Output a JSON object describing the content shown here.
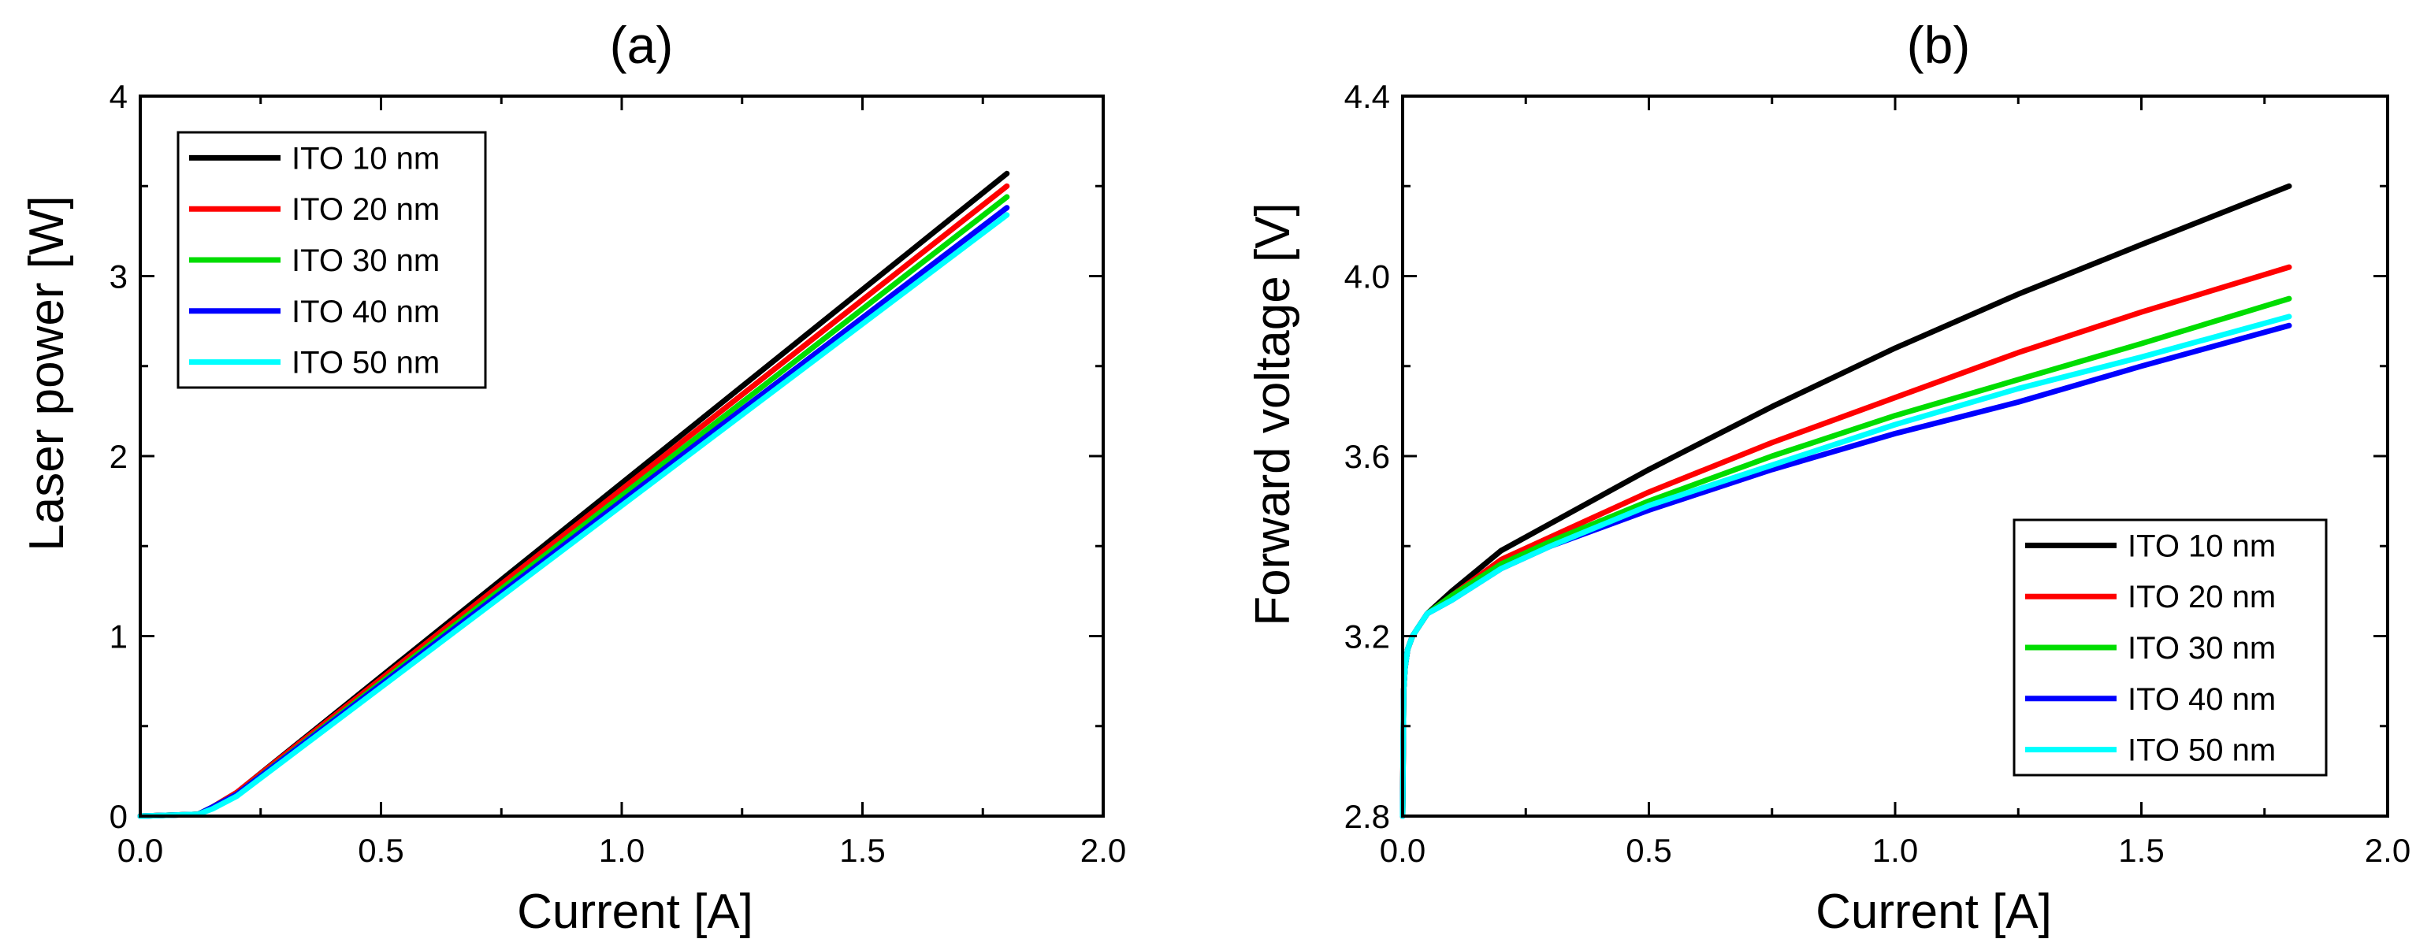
{
  "chart_data": [
    {
      "type": "line",
      "title": "(a)",
      "xlabel": "Current [A]",
      "ylabel": "Laser power [W]",
      "xlim": [
        0.0,
        2.0
      ],
      "ylim": [
        0,
        4
      ],
      "xticks": [
        0.0,
        0.5,
        1.0,
        1.5,
        2.0
      ],
      "xtick_labels": [
        "0.0",
        "0.5",
        "1.0",
        "1.5",
        "2.0"
      ],
      "yticks": [
        0,
        1,
        2,
        3,
        4
      ],
      "ytick_labels": [
        "0",
        "1",
        "2",
        "3",
        "4"
      ],
      "legend_position": "top-left",
      "series": [
        {
          "name": "ITO 10 nm",
          "color": "#000000",
          "x": [
            0,
            0.12,
            0.15,
            0.2,
            1.8
          ],
          "y": [
            0,
            0.01,
            0.05,
            0.13,
            3.57
          ]
        },
        {
          "name": "ITO 20 nm",
          "color": "#ff0000",
          "x": [
            0,
            0.12,
            0.15,
            0.2,
            1.8
          ],
          "y": [
            0,
            0.01,
            0.05,
            0.13,
            3.5
          ]
        },
        {
          "name": "ITO 30 nm",
          "color": "#00dd00",
          "x": [
            0,
            0.12,
            0.15,
            0.2,
            1.8
          ],
          "y": [
            0,
            0.01,
            0.05,
            0.12,
            3.44
          ]
        },
        {
          "name": "ITO 40 nm",
          "color": "#0000ff",
          "x": [
            0,
            0.12,
            0.15,
            0.2,
            1.8
          ],
          "y": [
            0,
            0.01,
            0.05,
            0.12,
            3.38
          ]
        },
        {
          "name": "ITO 50 nm",
          "color": "#00ffff",
          "x": [
            0,
            0.12,
            0.15,
            0.2,
            1.8
          ],
          "y": [
            0,
            0.01,
            0.04,
            0.11,
            3.34
          ]
        }
      ]
    },
    {
      "type": "line",
      "title": "(b)",
      "xlabel": "Current [A]",
      "ylabel": "Forward voltage [V]",
      "xlim": [
        0.0,
        2.0
      ],
      "ylim": [
        2.8,
        4.4
      ],
      "xticks": [
        0.0,
        0.5,
        1.0,
        1.5,
        2.0
      ],
      "xtick_labels": [
        "0.0",
        "0.5",
        "1.0",
        "1.5",
        "2.0"
      ],
      "yticks": [
        2.8,
        3.2,
        3.6,
        4.0,
        4.4
      ],
      "ytick_labels": [
        "2.8",
        "3.2",
        "3.6",
        "4.0",
        "4.4"
      ],
      "legend_position": "bottom-right",
      "series": [
        {
          "name": "ITO 10 nm",
          "color": "#000000",
          "x": [
            0,
            0.002,
            0.005,
            0.01,
            0.02,
            0.05,
            0.1,
            0.2,
            0.3,
            0.5,
            0.75,
            1.0,
            1.25,
            1.5,
            1.8
          ],
          "y": [
            2.8,
            3.08,
            3.13,
            3.17,
            3.2,
            3.25,
            3.3,
            3.39,
            3.45,
            3.57,
            3.71,
            3.84,
            3.96,
            4.07,
            4.2
          ]
        },
        {
          "name": "ITO 20 nm",
          "color": "#ff0000",
          "x": [
            0,
            0.002,
            0.005,
            0.01,
            0.02,
            0.05,
            0.1,
            0.2,
            0.3,
            0.5,
            0.75,
            1.0,
            1.25,
            1.5,
            1.8
          ],
          "y": [
            2.8,
            3.08,
            3.13,
            3.17,
            3.2,
            3.25,
            3.29,
            3.37,
            3.42,
            3.52,
            3.63,
            3.73,
            3.83,
            3.92,
            4.02
          ]
        },
        {
          "name": "ITO 30 nm",
          "color": "#00dd00",
          "x": [
            0,
            0.002,
            0.005,
            0.01,
            0.02,
            0.05,
            0.1,
            0.2,
            0.3,
            0.5,
            0.75,
            1.0,
            1.25,
            1.5,
            1.8
          ],
          "y": [
            2.8,
            3.08,
            3.13,
            3.17,
            3.2,
            3.25,
            3.29,
            3.36,
            3.41,
            3.5,
            3.6,
            3.69,
            3.77,
            3.85,
            3.95
          ]
        },
        {
          "name": "ITO 40 nm",
          "color": "#0000ff",
          "x": [
            0,
            0.002,
            0.005,
            0.01,
            0.02,
            0.05,
            0.1,
            0.2,
            0.3,
            0.5,
            0.75,
            1.0,
            1.25,
            1.5,
            1.8
          ],
          "y": [
            2.8,
            3.08,
            3.13,
            3.17,
            3.2,
            3.25,
            3.28,
            3.35,
            3.4,
            3.48,
            3.57,
            3.65,
            3.72,
            3.8,
            3.89
          ]
        },
        {
          "name": "ITO 50 nm",
          "color": "#00ffff",
          "x": [
            0,
            0.002,
            0.005,
            0.01,
            0.02,
            0.05,
            0.1,
            0.2,
            0.3,
            0.5,
            0.75,
            1.0,
            1.25,
            1.5,
            1.8
          ],
          "y": [
            2.8,
            3.08,
            3.13,
            3.17,
            3.2,
            3.25,
            3.28,
            3.35,
            3.4,
            3.49,
            3.58,
            3.67,
            3.75,
            3.82,
            3.91
          ]
        }
      ]
    }
  ]
}
